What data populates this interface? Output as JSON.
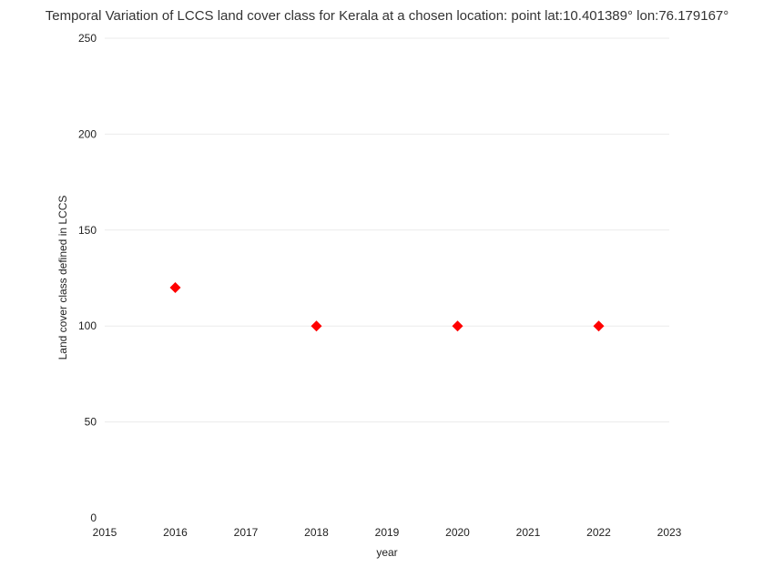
{
  "chart_data": {
    "type": "scatter",
    "title": "Temporal Variation of LCCS land cover class for Kerala at a chosen location: point lat:10.401389° lon:76.179167°",
    "xlabel": "year",
    "ylabel": "Land cover class defined in LCCS",
    "xlim": [
      2015,
      2023
    ],
    "ylim": [
      0,
      250
    ],
    "xticks": [
      2015,
      2016,
      2017,
      2018,
      2019,
      2020,
      2021,
      2022,
      2023
    ],
    "yticks": [
      0,
      50,
      100,
      150,
      200,
      250
    ],
    "grid": "horizontal",
    "marker": "diamond",
    "marker_color": "#ff0000",
    "points": [
      {
        "x": 2016,
        "y": 120
      },
      {
        "x": 2018,
        "y": 100
      },
      {
        "x": 2020,
        "y": 100
      },
      {
        "x": 2022,
        "y": 100
      }
    ]
  }
}
